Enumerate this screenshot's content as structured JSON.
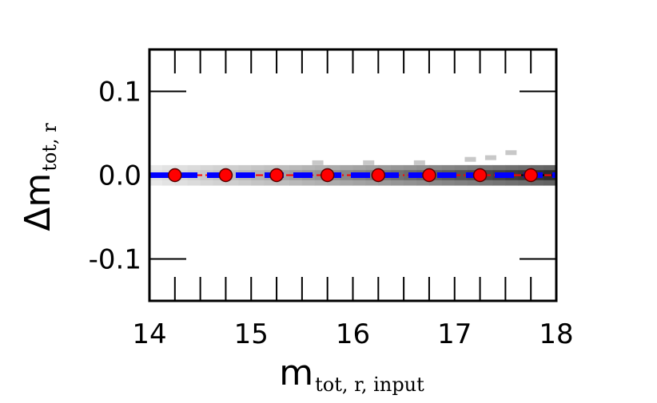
{
  "chart_data": {
    "type": "scatter",
    "xlabel": {
      "main": "m",
      "sub": "tot, r, input"
    },
    "ylabel": {
      "main": "Δm",
      "sub": "tot, r"
    },
    "xlim": [
      14,
      18
    ],
    "ylim": [
      -0.15,
      0.15
    ],
    "xticks": [
      14,
      15,
      16,
      17,
      18
    ],
    "xtick_labels": [
      "14",
      "15",
      "16",
      "17",
      "18"
    ],
    "yticks": [
      -0.1,
      0.0,
      0.1
    ],
    "ytick_labels": [
      "-0.1",
      "0.0",
      "0.1"
    ],
    "grid": false,
    "density": {
      "x_bins": [
        14.0,
        18.0
      ],
      "y_range": [
        -0.012,
        0.012
      ],
      "max_darkness": 1.0
    },
    "series": [
      {
        "style": "red points with dash-dot line",
        "color": "#ff0000",
        "x": [
          14.25,
          14.75,
          15.25,
          15.75,
          16.25,
          16.75,
          17.25,
          17.75
        ],
        "y": [
          0.0,
          0.0,
          0.0,
          0.0,
          0.0,
          0.0,
          0.0,
          0.0
        ]
      },
      {
        "style": "blue dashed line",
        "color": "#0000ff",
        "x": [
          14.0,
          18.0
        ],
        "y": [
          0.0,
          0.0
        ]
      }
    ]
  }
}
